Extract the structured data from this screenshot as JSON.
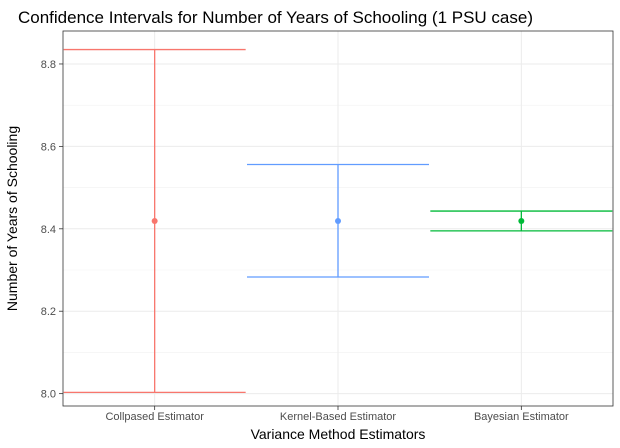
{
  "chart_data": {
    "type": "errorbar",
    "title": "Confidence Intervals for Number of Years of Schooling (1 PSU case)",
    "xlabel": "Variance Method Estimators",
    "ylabel": "Number of Years of Schooling",
    "ylim": [
      7.97,
      8.88
    ],
    "yticks": [
      8.0,
      8.2,
      8.4,
      8.6,
      8.8
    ],
    "ytick_labels": [
      "8.0",
      "8.2",
      "8.4",
      "8.6",
      "8.8"
    ],
    "grid": true,
    "categories": [
      "Collpased Estimator",
      "Kernel-Based Estimator",
      "Bayesian Estimator"
    ],
    "series": [
      {
        "name": "Collpased Estimator",
        "estimate": 8.419,
        "lower": 8.003,
        "upper": 8.835,
        "color": "#F8766D"
      },
      {
        "name": "Kernel-Based Estimator",
        "estimate": 8.419,
        "lower": 8.283,
        "upper": 8.556,
        "color": "#619CFF"
      },
      {
        "name": "Bayesian Estimator",
        "estimate": 8.419,
        "lower": 8.395,
        "upper": 8.443,
        "color": "#00BA38"
      }
    ]
  }
}
